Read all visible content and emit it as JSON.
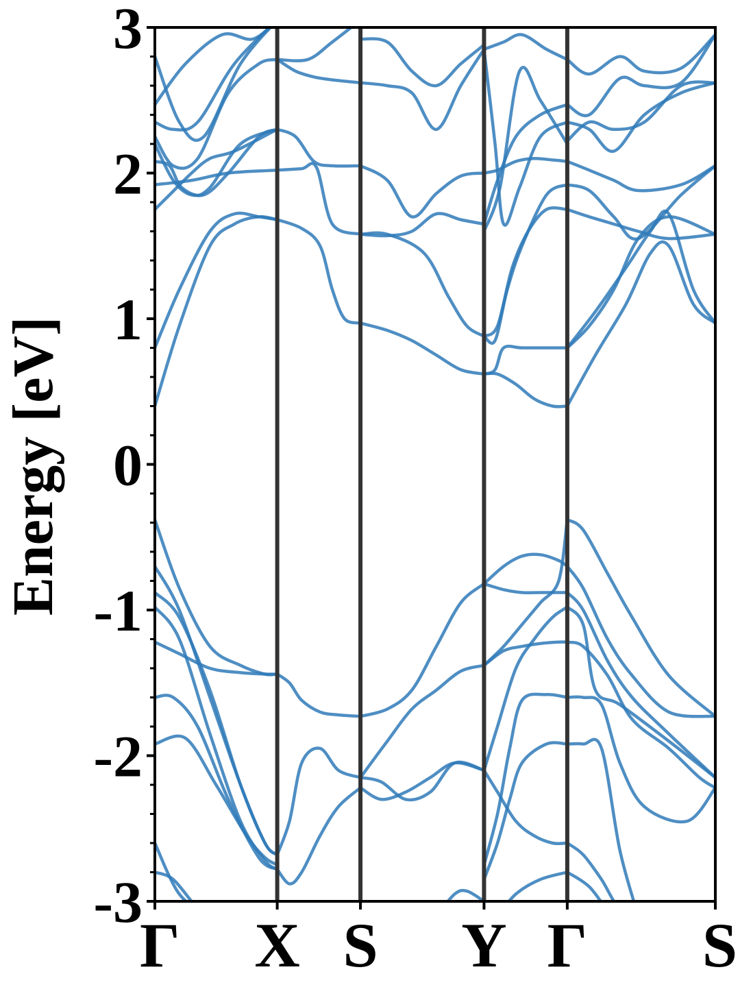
{
  "chart_data": {
    "type": "line",
    "ylabel": "Energy [eV]",
    "xlabel": "",
    "ylim": [
      -3,
      3
    ],
    "yticks": [
      -3,
      -2,
      -1,
      0,
      1,
      2,
      3
    ],
    "ytick_labels": [
      "-3",
      "-2",
      "-1",
      "0",
      "1",
      "2",
      "3"
    ],
    "high_symmetry_points": [
      {
        "label": "Γ",
        "x": 0
      },
      {
        "label": "X",
        "x": 1.0
      },
      {
        "label": "S",
        "x": 1.68
      },
      {
        "label": "Y",
        "x": 2.69
      },
      {
        "label": "Γ",
        "x": 3.37
      },
      {
        "label": "S",
        "x": 4.58
      }
    ],
    "xlim": [
      0,
      4.58
    ],
    "grid": false,
    "band_color": "#2f7ab8",
    "kline_color": "#333333",
    "series": [
      {
        "x": [
          0,
          0.25,
          0.55,
          0.8,
          1.0
        ],
        "y": [
          2.47,
          2.75,
          2.95,
          2.92,
          3.05
        ]
      },
      {
        "x": [
          0,
          0.2,
          0.4,
          0.7,
          1.0
        ],
        "y": [
          2.8,
          2.35,
          2.25,
          2.75,
          3.05
        ]
      },
      {
        "x": [
          0,
          0.15,
          0.35,
          0.65,
          1.0
        ],
        "y": [
          2.35,
          2.3,
          2.35,
          2.75,
          3.05
        ]
      },
      {
        "x": [
          0,
          0.15,
          0.35,
          0.6,
          0.85,
          1.0
        ],
        "y": [
          2.25,
          2.05,
          2.1,
          2.55,
          2.75,
          2.78
        ]
      },
      {
        "x": [
          0,
          0.12,
          0.22,
          0.4,
          0.6,
          0.85,
          1.0
        ],
        "y": [
          2.08,
          2.05,
          1.9,
          1.85,
          2.0,
          2.25,
          2.3
        ]
      },
      {
        "x": [
          0,
          0.15,
          0.3,
          0.45,
          0.7,
          1.0
        ],
        "y": [
          2.2,
          1.95,
          1.85,
          1.9,
          2.2,
          2.3
        ]
      },
      {
        "x": [
          0,
          0.3,
          0.6,
          1.0
        ],
        "y": [
          1.92,
          1.95,
          2.0,
          2.02
        ]
      },
      {
        "x": [
          0,
          0.12,
          0.3,
          0.45,
          0.65,
          1.0
        ],
        "y": [
          1.75,
          1.85,
          2.0,
          2.1,
          2.15,
          2.3
        ]
      },
      {
        "x": [
          0,
          0.2,
          0.45,
          0.65,
          0.85,
          1.0
        ],
        "y": [
          0.8,
          1.2,
          1.6,
          1.72,
          1.7,
          1.68
        ]
      },
      {
        "x": [
          0,
          0.2,
          0.45,
          0.65,
          0.85,
          1.0
        ],
        "y": [
          0.4,
          0.95,
          1.5,
          1.65,
          1.7,
          1.68
        ]
      },
      {
        "x": [
          1.0,
          1.15,
          1.3,
          1.45,
          1.68
        ],
        "y": [
          2.78,
          2.7,
          2.66,
          2.64,
          2.62
        ]
      },
      {
        "x": [
          1.0,
          1.15,
          1.3,
          1.45,
          1.68
        ],
        "y": [
          2.3,
          2.25,
          2.08,
          2.05,
          2.05
        ]
      },
      {
        "x": [
          1.0,
          1.2,
          1.32,
          1.45,
          1.68
        ],
        "y": [
          2.02,
          2.03,
          2.04,
          1.65,
          1.58
        ]
      },
      {
        "x": [
          1.0,
          1.2,
          1.35,
          1.45,
          1.55,
          1.68
        ],
        "y": [
          1.68,
          1.62,
          1.5,
          1.2,
          1.0,
          0.97
        ]
      },
      {
        "x": [
          1.0,
          1.25,
          1.45,
          1.68
        ],
        "y": [
          2.78,
          2.78,
          2.9,
          3.05
        ]
      },
      {
        "x": [
          1.68,
          1.9,
          2.1,
          2.3,
          2.5,
          2.69
        ],
        "y": [
          2.62,
          2.6,
          2.55,
          2.3,
          2.6,
          2.85
        ]
      },
      {
        "x": [
          1.68,
          1.9,
          2.1,
          2.3,
          2.5,
          2.69
        ],
        "y": [
          2.05,
          1.95,
          1.7,
          1.86,
          1.98,
          2.0
        ]
      },
      {
        "x": [
          1.68,
          1.9,
          2.1,
          2.3,
          2.5,
          2.69
        ],
        "y": [
          1.58,
          1.57,
          1.6,
          1.72,
          1.68,
          1.65
        ]
      },
      {
        "x": [
          1.68,
          1.9,
          2.1,
          2.3,
          2.5,
          2.69
        ],
        "y": [
          0.97,
          0.92,
          0.85,
          0.75,
          0.65,
          0.62
        ]
      },
      {
        "x": [
          1.68,
          1.9,
          2.1,
          2.3,
          2.5,
          2.69
        ],
        "y": [
          2.92,
          2.9,
          2.7,
          2.6,
          2.75,
          2.88
        ]
      },
      {
        "x": [
          1.68,
          1.9,
          2.2,
          2.4,
          2.55,
          2.69
        ],
        "y": [
          1.58,
          1.58,
          1.45,
          1.15,
          0.95,
          0.88
        ]
      },
      {
        "x": [
          2.69,
          2.85,
          3.0,
          3.2,
          3.37
        ],
        "y": [
          2.85,
          2.9,
          2.95,
          2.85,
          2.78
        ]
      },
      {
        "x": [
          2.69,
          2.8,
          2.95,
          3.1,
          3.25,
          3.37
        ],
        "y": [
          2.0,
          2.02,
          2.08,
          2.1,
          2.09,
          2.08
        ]
      },
      {
        "x": [
          2.69,
          2.8,
          2.95,
          3.15,
          3.37
        ],
        "y": [
          1.65,
          1.95,
          2.25,
          2.4,
          2.47
        ]
      },
      {
        "x": [
          2.69,
          2.78,
          2.85,
          2.98,
          3.15,
          3.37
        ],
        "y": [
          2.85,
          2.2,
          1.65,
          1.9,
          2.25,
          2.35
        ]
      },
      {
        "x": [
          2.69,
          2.78,
          2.88,
          3.0,
          3.2,
          3.37
        ],
        "y": [
          0.88,
          0.85,
          1.2,
          1.5,
          1.85,
          1.92
        ]
      },
      {
        "x": [
          2.69,
          2.78,
          2.85,
          3.0,
          3.2,
          3.37
        ],
        "y": [
          0.62,
          0.65,
          0.8,
          0.8,
          0.8,
          0.8
        ]
      },
      {
        "x": [
          2.69,
          2.8,
          2.95,
          3.1,
          3.25,
          3.37
        ],
        "y": [
          0.62,
          0.62,
          0.55,
          0.45,
          0.4,
          0.4
        ]
      },
      {
        "x": [
          2.69,
          2.8,
          2.92,
          3.05,
          3.2,
          3.37
        ],
        "y": [
          0.88,
          0.95,
          1.35,
          1.6,
          1.75,
          1.75
        ]
      },
      {
        "x": [
          2.69,
          2.82,
          2.98,
          3.15,
          3.37
        ],
        "y": [
          1.6,
          1.9,
          2.7,
          2.5,
          2.2
        ]
      },
      {
        "x": [
          3.37,
          3.55,
          3.8,
          4.0,
          4.3,
          4.58
        ],
        "y": [
          2.78,
          2.68,
          2.8,
          2.7,
          2.72,
          2.95
        ]
      },
      {
        "x": [
          3.37,
          3.55,
          3.8,
          4.0,
          4.3,
          4.58
        ],
        "y": [
          2.47,
          2.4,
          2.65,
          2.6,
          2.62,
          2.95
        ]
      },
      {
        "x": [
          3.37,
          3.55,
          3.75,
          4.0,
          4.3,
          4.58
        ],
        "y": [
          2.35,
          2.3,
          2.15,
          2.4,
          2.55,
          2.62
        ]
      },
      {
        "x": [
          3.37,
          3.55,
          3.75,
          4.0,
          4.3,
          4.58
        ],
        "y": [
          2.22,
          2.35,
          2.3,
          2.35,
          2.6,
          2.62
        ]
      },
      {
        "x": [
          3.37,
          3.55,
          3.75,
          3.95,
          4.3,
          4.58
        ],
        "y": [
          2.08,
          2.02,
          1.95,
          1.88,
          1.92,
          2.05
        ]
      },
      {
        "x": [
          3.37,
          3.55,
          3.75,
          3.95,
          4.3,
          4.58
        ],
        "y": [
          1.92,
          1.88,
          1.7,
          1.55,
          1.85,
          2.05
        ]
      },
      {
        "x": [
          3.37,
          3.55,
          3.75,
          3.95,
          4.2,
          4.58
        ],
        "y": [
          1.75,
          1.7,
          1.65,
          1.6,
          1.55,
          1.58
        ]
      },
      {
        "x": [
          3.37,
          3.55,
          3.75,
          3.95,
          4.2,
          4.58
        ],
        "y": [
          0.8,
          0.95,
          1.2,
          1.55,
          1.7,
          1.58
        ]
      },
      {
        "x": [
          3.37,
          3.6,
          3.85,
          4.05,
          4.2,
          4.4,
          4.58
        ],
        "y": [
          0.4,
          0.75,
          1.1,
          1.45,
          1.5,
          1.1,
          0.97
        ]
      },
      {
        "x": [
          3.37,
          3.6,
          3.85,
          4.05,
          4.2,
          4.4,
          4.58
        ],
        "y": [
          0.8,
          1.05,
          1.35,
          1.6,
          1.72,
          1.2,
          0.97
        ]
      },
      {
        "x": [
          0,
          0.2,
          0.45,
          0.7,
          0.9,
          1.0
        ],
        "y": [
          -0.38,
          -0.85,
          -1.25,
          -1.38,
          -1.44,
          -1.44
        ]
      },
      {
        "x": [
          0,
          0.2,
          0.45,
          0.7,
          0.9,
          1.0
        ],
        "y": [
          -0.7,
          -1.0,
          -1.6,
          -2.2,
          -2.6,
          -2.68
        ]
      },
      {
        "x": [
          0,
          0.2,
          0.45,
          0.7,
          0.9,
          1.0
        ],
        "y": [
          -0.88,
          -1.05,
          -1.55,
          -2.2,
          -2.6,
          -2.68
        ]
      },
      {
        "x": [
          0,
          0.2,
          0.45,
          0.7,
          0.9,
          1.0
        ],
        "y": [
          -0.98,
          -1.2,
          -1.85,
          -2.45,
          -2.72,
          -2.78
        ]
      },
      {
        "x": [
          0,
          0.2,
          0.45,
          0.7,
          0.9,
          1.0
        ],
        "y": [
          -1.22,
          -1.3,
          -1.4,
          -1.43,
          -1.44,
          -1.44
        ]
      },
      {
        "x": [
          0,
          0.15,
          0.35,
          0.6,
          0.85,
          1.0
        ],
        "y": [
          -1.6,
          -1.6,
          -1.8,
          -2.3,
          -2.7,
          -2.78
        ]
      },
      {
        "x": [
          0,
          0.25,
          0.5,
          0.75,
          0.9,
          1.0
        ],
        "y": [
          -1.92,
          -1.88,
          -2.2,
          -2.55,
          -2.7,
          -2.75
        ]
      },
      {
        "x": [
          0,
          0.2,
          0.45,
          0.65,
          0.85
        ],
        "y": [
          -2.6,
          -2.95,
          -3.1,
          -3.1,
          -3.1
        ]
      },
      {
        "x": [
          0,
          0.15,
          0.35,
          0.45
        ],
        "y": [
          -2.8,
          -2.85,
          -3.05,
          -3.1
        ]
      },
      {
        "x": [
          1.0,
          1.1,
          1.2,
          1.35,
          1.5,
          1.68
        ],
        "y": [
          -1.44,
          -1.5,
          -1.62,
          -1.7,
          -1.72,
          -1.73
        ]
      },
      {
        "x": [
          1.0,
          1.1,
          1.2,
          1.35,
          1.5,
          1.68
        ],
        "y": [
          -2.68,
          -2.45,
          -2.05,
          -1.95,
          -2.1,
          -2.15
        ]
      },
      {
        "x": [
          1.0,
          1.1,
          1.2,
          1.35,
          1.5,
          1.68
        ],
        "y": [
          -2.78,
          -2.88,
          -2.8,
          -2.55,
          -2.35,
          -2.22
        ]
      },
      {
        "x": [
          1.68,
          1.9,
          2.1,
          2.3,
          2.5,
          2.69
        ],
        "y": [
          -1.73,
          -1.68,
          -1.55,
          -1.25,
          -0.95,
          -0.82
        ]
      },
      {
        "x": [
          1.68,
          1.9,
          2.1,
          2.3,
          2.5,
          2.69
        ],
        "y": [
          -2.15,
          -1.9,
          -1.68,
          -1.55,
          -1.42,
          -1.38
        ]
      },
      {
        "x": [
          1.68,
          1.85,
          2.05,
          2.25,
          2.45,
          2.69
        ],
        "y": [
          -2.22,
          -2.3,
          -2.25,
          -2.15,
          -2.05,
          -2.1
        ]
      },
      {
        "x": [
          1.68,
          1.85,
          2.05,
          2.25,
          2.45,
          2.69
        ],
        "y": [
          -2.15,
          -2.18,
          -2.3,
          -2.25,
          -2.05,
          -2.1
        ]
      },
      {
        "x": [
          2.3,
          2.45,
          2.55,
          2.69
        ],
        "y": [
          -3.1,
          -2.95,
          -2.93,
          -3.0
        ]
      },
      {
        "x": [
          2.69,
          2.85,
          3.0,
          3.15,
          3.3,
          3.37
        ],
        "y": [
          -0.82,
          -0.7,
          -0.63,
          -0.62,
          -0.66,
          -0.7
        ]
      },
      {
        "x": [
          2.69,
          2.85,
          3.0,
          3.15,
          3.3,
          3.37
        ],
        "y": [
          -0.82,
          -0.86,
          -0.88,
          -0.88,
          -0.88,
          -0.88
        ]
      },
      {
        "x": [
          2.69,
          2.85,
          3.0,
          3.15,
          3.3,
          3.37
        ],
        "y": [
          -1.38,
          -1.28,
          -1.25,
          -1.23,
          -1.22,
          -1.22
        ]
      },
      {
        "x": [
          2.69,
          2.85,
          3.0,
          3.15,
          3.3,
          3.37
        ],
        "y": [
          -1.38,
          -1.25,
          -1.1,
          -0.95,
          -0.8,
          -0.38
        ]
      },
      {
        "x": [
          2.69,
          2.8,
          2.95,
          3.1,
          3.25,
          3.37
        ],
        "y": [
          -2.1,
          -2.25,
          -2.45,
          -2.55,
          -2.6,
          -2.6
        ]
      },
      {
        "x": [
          2.69,
          2.8,
          2.95,
          3.1,
          3.25,
          3.37
        ],
        "y": [
          -2.1,
          -1.8,
          -1.4,
          -1.2,
          -1.05,
          -0.98
        ]
      },
      {
        "x": [
          2.69,
          2.8,
          2.9,
          3.0,
          3.2,
          3.37
        ],
        "y": [
          -2.75,
          -2.4,
          -1.95,
          -1.62,
          -1.58,
          -1.6
        ]
      },
      {
        "x": [
          2.69,
          2.8,
          2.9,
          3.0,
          3.2,
          3.37
        ],
        "y": [
          -2.85,
          -2.6,
          -2.3,
          -2.05,
          -1.92,
          -1.92
        ]
      },
      {
        "x": [
          2.8,
          2.95,
          3.15,
          3.37
        ],
        "y": [
          -3.1,
          -2.95,
          -2.85,
          -2.8
        ]
      },
      {
        "x": [
          3.37,
          3.5,
          3.7,
          3.9,
          4.2,
          4.58
        ],
        "y": [
          -0.38,
          -0.45,
          -0.75,
          -1.05,
          -1.45,
          -1.73
        ]
      },
      {
        "x": [
          3.37,
          3.5,
          3.7,
          3.9,
          4.2,
          4.58
        ],
        "y": [
          -0.7,
          -0.85,
          -1.2,
          -1.45,
          -1.7,
          -1.73
        ]
      },
      {
        "x": [
          3.37,
          3.5,
          3.7,
          3.9,
          4.2,
          4.58
        ],
        "y": [
          -0.88,
          -1.0,
          -1.35,
          -1.6,
          -1.85,
          -2.15
        ]
      },
      {
        "x": [
          3.37,
          3.5,
          3.6,
          3.8,
          4.2,
          4.58
        ],
        "y": [
          -0.98,
          -1.1,
          -1.55,
          -1.65,
          -1.9,
          -2.15
        ]
      },
      {
        "x": [
          3.37,
          3.5,
          3.7,
          3.9,
          4.2,
          4.45,
          4.58
        ],
        "y": [
          -1.22,
          -1.25,
          -1.45,
          -1.75,
          -1.95,
          -2.15,
          -2.22
        ]
      },
      {
        "x": [
          3.37,
          3.5,
          3.65,
          3.8,
          4.0,
          4.35,
          4.58
        ],
        "y": [
          -1.6,
          -1.6,
          -1.65,
          -2.05,
          -2.35,
          -2.45,
          -2.22
        ]
      },
      {
        "x": [
          3.37,
          3.5,
          3.65,
          3.8,
          3.95
        ],
        "y": [
          -1.92,
          -1.92,
          -1.95,
          -2.65,
          -3.1
        ]
      },
      {
        "x": [
          3.37,
          3.5,
          3.65,
          3.8,
          4.0,
          4.2
        ],
        "y": [
          -2.6,
          -2.68,
          -2.85,
          -3.05,
          -3.1,
          -3.1
        ]
      },
      {
        "x": [
          3.37,
          3.55,
          3.75,
          3.95
        ],
        "y": [
          -2.8,
          -2.9,
          -3.1,
          -3.1
        ]
      }
    ]
  }
}
